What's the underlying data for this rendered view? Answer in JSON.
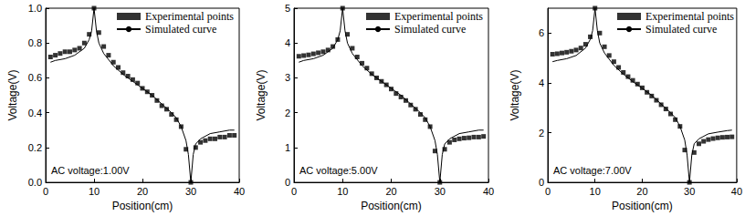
{
  "chart_data": [
    {
      "type": "line",
      "x_label": "Position(cm)",
      "y_label": "Voltage(V)",
      "annotation": "AC voltage:1.00V",
      "legend": "upper right",
      "grid": false,
      "xlim": [
        0,
        40
      ],
      "xticks": [
        0,
        10,
        20,
        30,
        40
      ],
      "ylim": [
        0,
        1.0
      ],
      "yticks": [
        {
          "value": 0,
          "label": "0.0"
        },
        {
          "value": 0.2,
          "label": "0.2"
        },
        {
          "value": 0.4,
          "label": "0.4"
        },
        {
          "value": 0.6,
          "label": "0.6"
        },
        {
          "value": 0.8,
          "label": "0.8"
        },
        {
          "value": 1.0,
          "label": "1.0"
        }
      ],
      "series": [
        {
          "name": "Experimental points",
          "type": "scatter",
          "marker": "square",
          "color": "#000000",
          "x": [
            1,
            2,
            3,
            4,
            5,
            6,
            7,
            8,
            9,
            10,
            11,
            12,
            13,
            14,
            15,
            16,
            17,
            18,
            19,
            20,
            21,
            22,
            23,
            24,
            25,
            26,
            27,
            28,
            29,
            30,
            31,
            32,
            33,
            34,
            35,
            36,
            37,
            38,
            39
          ],
          "values": [
            0.72,
            0.73,
            0.74,
            0.75,
            0.75,
            0.76,
            0.77,
            0.8,
            0.85,
            1.0,
            0.86,
            0.78,
            0.73,
            0.69,
            0.66,
            0.63,
            0.61,
            0.59,
            0.57,
            0.54,
            0.52,
            0.5,
            0.47,
            0.44,
            0.42,
            0.39,
            0.36,
            0.32,
            0.19,
            0.0,
            0.2,
            0.23,
            0.24,
            0.25,
            0.25,
            0.26,
            0.26,
            0.27,
            0.27
          ]
        },
        {
          "name": "Simulated curve",
          "type": "line",
          "line_style": "solid",
          "color": "#000000",
          "x": [
            1,
            2,
            4,
            6,
            8,
            9,
            9.5,
            10,
            10.5,
            11,
            12,
            14,
            16,
            18,
            20,
            22,
            24,
            26,
            27,
            28,
            29,
            29.5,
            30,
            30.5,
            31,
            32,
            34,
            36,
            38,
            39
          ],
          "values": [
            0.69,
            0.7,
            0.71,
            0.73,
            0.77,
            0.82,
            0.87,
            1.0,
            0.87,
            0.8,
            0.74,
            0.67,
            0.62,
            0.58,
            0.54,
            0.5,
            0.45,
            0.4,
            0.37,
            0.32,
            0.24,
            0.16,
            0.0,
            0.16,
            0.22,
            0.25,
            0.28,
            0.29,
            0.3,
            0.3
          ]
        }
      ]
    },
    {
      "type": "line",
      "x_label": "Position(cm)",
      "y_label": "Voltage(V)",
      "annotation": "AC voltage:5.00V",
      "legend": "upper right",
      "grid": false,
      "xlim": [
        0,
        40
      ],
      "xticks": [
        0,
        10,
        20,
        30,
        40
      ],
      "ylim": [
        0,
        5
      ],
      "yticks": [
        0,
        1,
        2,
        3,
        4,
        5
      ],
      "series": [
        {
          "name": "Experimental points",
          "type": "scatter",
          "marker": "square",
          "color": "#000000",
          "x": [
            1,
            2,
            3,
            4,
            5,
            6,
            7,
            8,
            9,
            10,
            11,
            12,
            13,
            14,
            15,
            16,
            17,
            18,
            19,
            20,
            21,
            22,
            23,
            24,
            25,
            26,
            27,
            28,
            29,
            30,
            31,
            32,
            33,
            34,
            35,
            36,
            37,
            38,
            39
          ],
          "values": [
            3.62,
            3.64,
            3.66,
            3.69,
            3.72,
            3.75,
            3.8,
            3.9,
            4.1,
            5.0,
            4.25,
            3.85,
            3.6,
            3.42,
            3.28,
            3.12,
            3.0,
            2.9,
            2.8,
            2.68,
            2.55,
            2.45,
            2.35,
            2.22,
            2.1,
            1.95,
            1.8,
            1.6,
            0.9,
            0.0,
            0.95,
            1.15,
            1.22,
            1.25,
            1.27,
            1.28,
            1.3,
            1.3,
            1.32
          ]
        },
        {
          "name": "Simulated curve",
          "type": "line",
          "line_style": "solid",
          "color": "#000000",
          "x": [
            1,
            2,
            4,
            6,
            8,
            9,
            9.5,
            10,
            10.5,
            11,
            12,
            14,
            16,
            18,
            20,
            22,
            24,
            26,
            27,
            28,
            29,
            29.5,
            30,
            30.5,
            31,
            32,
            34,
            36,
            38,
            39
          ],
          "values": [
            3.45,
            3.5,
            3.55,
            3.65,
            3.85,
            4.1,
            4.35,
            5.0,
            4.35,
            4.0,
            3.7,
            3.35,
            3.1,
            2.9,
            2.7,
            2.5,
            2.25,
            2.0,
            1.85,
            1.6,
            1.2,
            0.8,
            0.0,
            0.8,
            1.1,
            1.25,
            1.4,
            1.45,
            1.5,
            1.5
          ]
        }
      ]
    },
    {
      "type": "line",
      "x_label": "Position(cm)",
      "y_label": "Voltage(V)",
      "annotation": "AC voltage:7.00V",
      "legend": "upper right",
      "grid": false,
      "xlim": [
        0,
        40
      ],
      "xticks": [
        0,
        10,
        20,
        30,
        40
      ],
      "ylim": [
        0,
        7
      ],
      "yticks": [
        0,
        2,
        4,
        6
      ],
      "series": [
        {
          "name": "Experimental points",
          "type": "scatter",
          "marker": "square",
          "color": "#000000",
          "x": [
            1,
            2,
            3,
            4,
            5,
            6,
            7,
            8,
            9,
            10,
            11,
            12,
            13,
            14,
            15,
            16,
            17,
            18,
            19,
            20,
            21,
            22,
            23,
            24,
            25,
            26,
            27,
            28,
            29,
            30,
            31,
            32,
            33,
            34,
            35,
            36,
            37,
            38,
            39
          ],
          "values": [
            5.15,
            5.17,
            5.2,
            5.23,
            5.27,
            5.32,
            5.4,
            5.55,
            5.85,
            7.0,
            6.0,
            5.45,
            5.1,
            4.85,
            4.62,
            4.42,
            4.25,
            4.1,
            3.95,
            3.8,
            3.62,
            3.47,
            3.3,
            3.12,
            2.95,
            2.75,
            2.52,
            2.25,
            1.3,
            0.0,
            1.2,
            1.55,
            1.65,
            1.72,
            1.76,
            1.79,
            1.81,
            1.82,
            1.83
          ]
        },
        {
          "name": "Simulated curve",
          "type": "line",
          "line_style": "solid",
          "color": "#000000",
          "x": [
            1,
            2,
            4,
            6,
            8,
            9,
            9.5,
            10,
            10.5,
            11,
            12,
            14,
            16,
            18,
            20,
            22,
            24,
            26,
            27,
            28,
            29,
            29.5,
            30,
            30.5,
            31,
            32,
            34,
            36,
            38,
            39
          ],
          "values": [
            4.85,
            4.9,
            4.97,
            5.1,
            5.4,
            5.75,
            6.1,
            7.0,
            6.1,
            5.6,
            5.2,
            4.7,
            4.35,
            4.05,
            3.78,
            3.5,
            3.15,
            2.8,
            2.6,
            2.25,
            1.7,
            1.1,
            0.0,
            1.1,
            1.55,
            1.75,
            1.95,
            2.02,
            2.08,
            2.1
          ]
        }
      ]
    }
  ]
}
